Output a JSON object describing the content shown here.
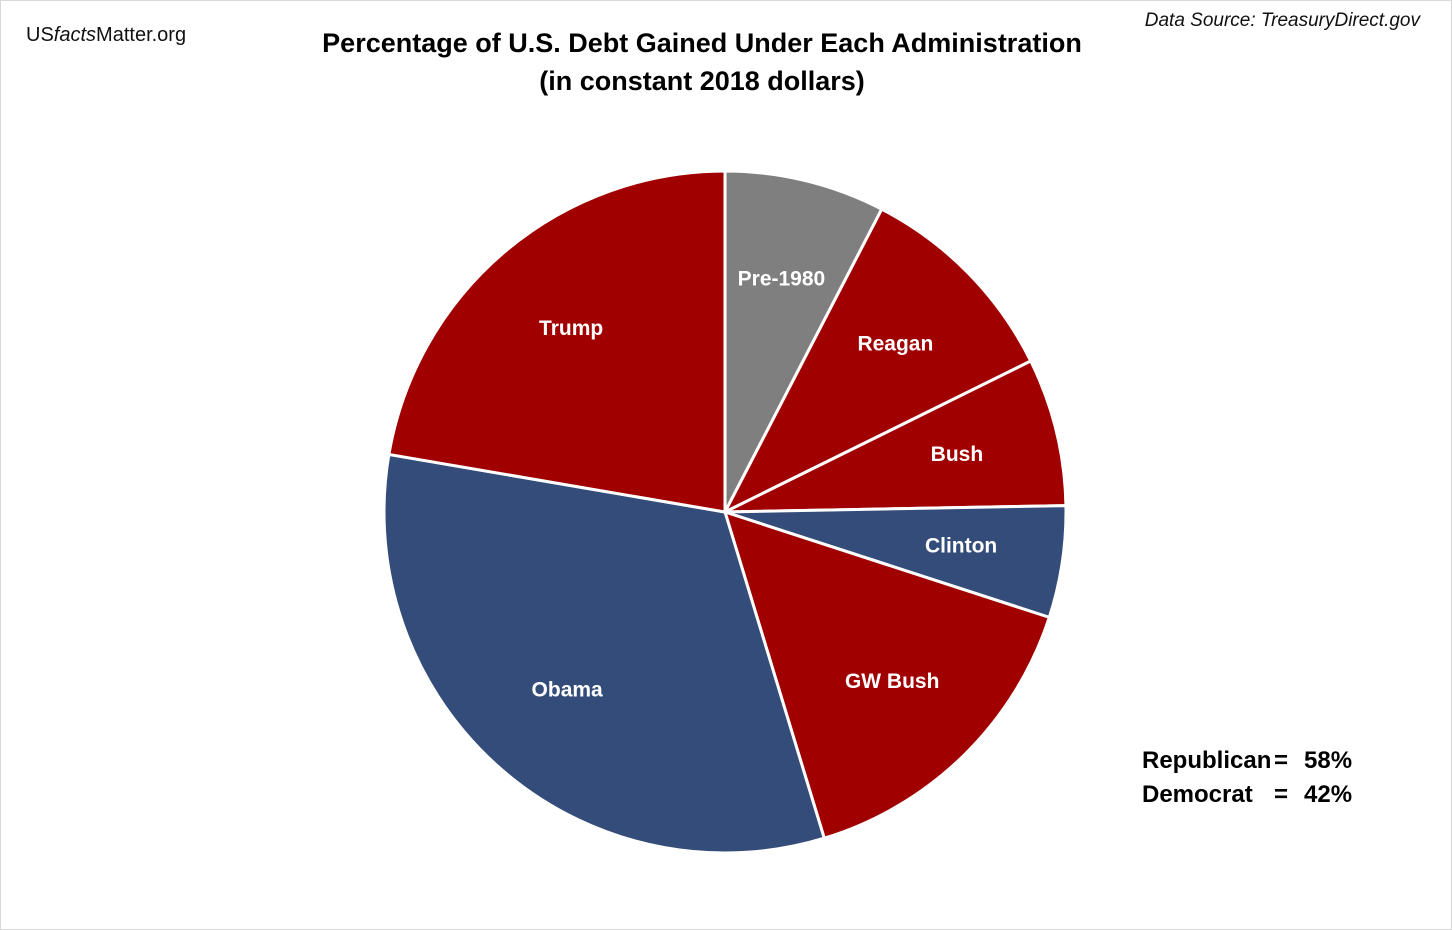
{
  "brand": {
    "prefix": "US",
    "italic": "facts",
    "suffix": "Matter.org"
  },
  "source": "Data Source: TreasuryDirect.gov",
  "chart_data": {
    "type": "pie",
    "title": "Percentage of U.S. Debt Gained Under Each Administration",
    "subtitle": "(in constant 2018 dollars)",
    "start_angle_deg": 0,
    "direction": "clockwise",
    "slices": [
      {
        "label": "Pre-1980",
        "value": 7.6,
        "color": "#7f7f7f"
      },
      {
        "label": "Reagan",
        "value": 10.1,
        "color": "#a00000"
      },
      {
        "label": "Bush",
        "value": 7.0,
        "color": "#a00000"
      },
      {
        "label": "Clinton",
        "value": 5.3,
        "color": "#344c7a"
      },
      {
        "label": "GW Bush",
        "value": 15.3,
        "color": "#a00000"
      },
      {
        "label": "Obama",
        "value": 32.4,
        "color": "#344c7a"
      },
      {
        "label": "Trump",
        "value": 22.3,
        "color": "#a00000"
      }
    ]
  },
  "summary": {
    "republican_label": "Republican",
    "republican_value": "58%",
    "democrat_label": "Democrat",
    "democrat_value": "42%",
    "equals": "="
  }
}
